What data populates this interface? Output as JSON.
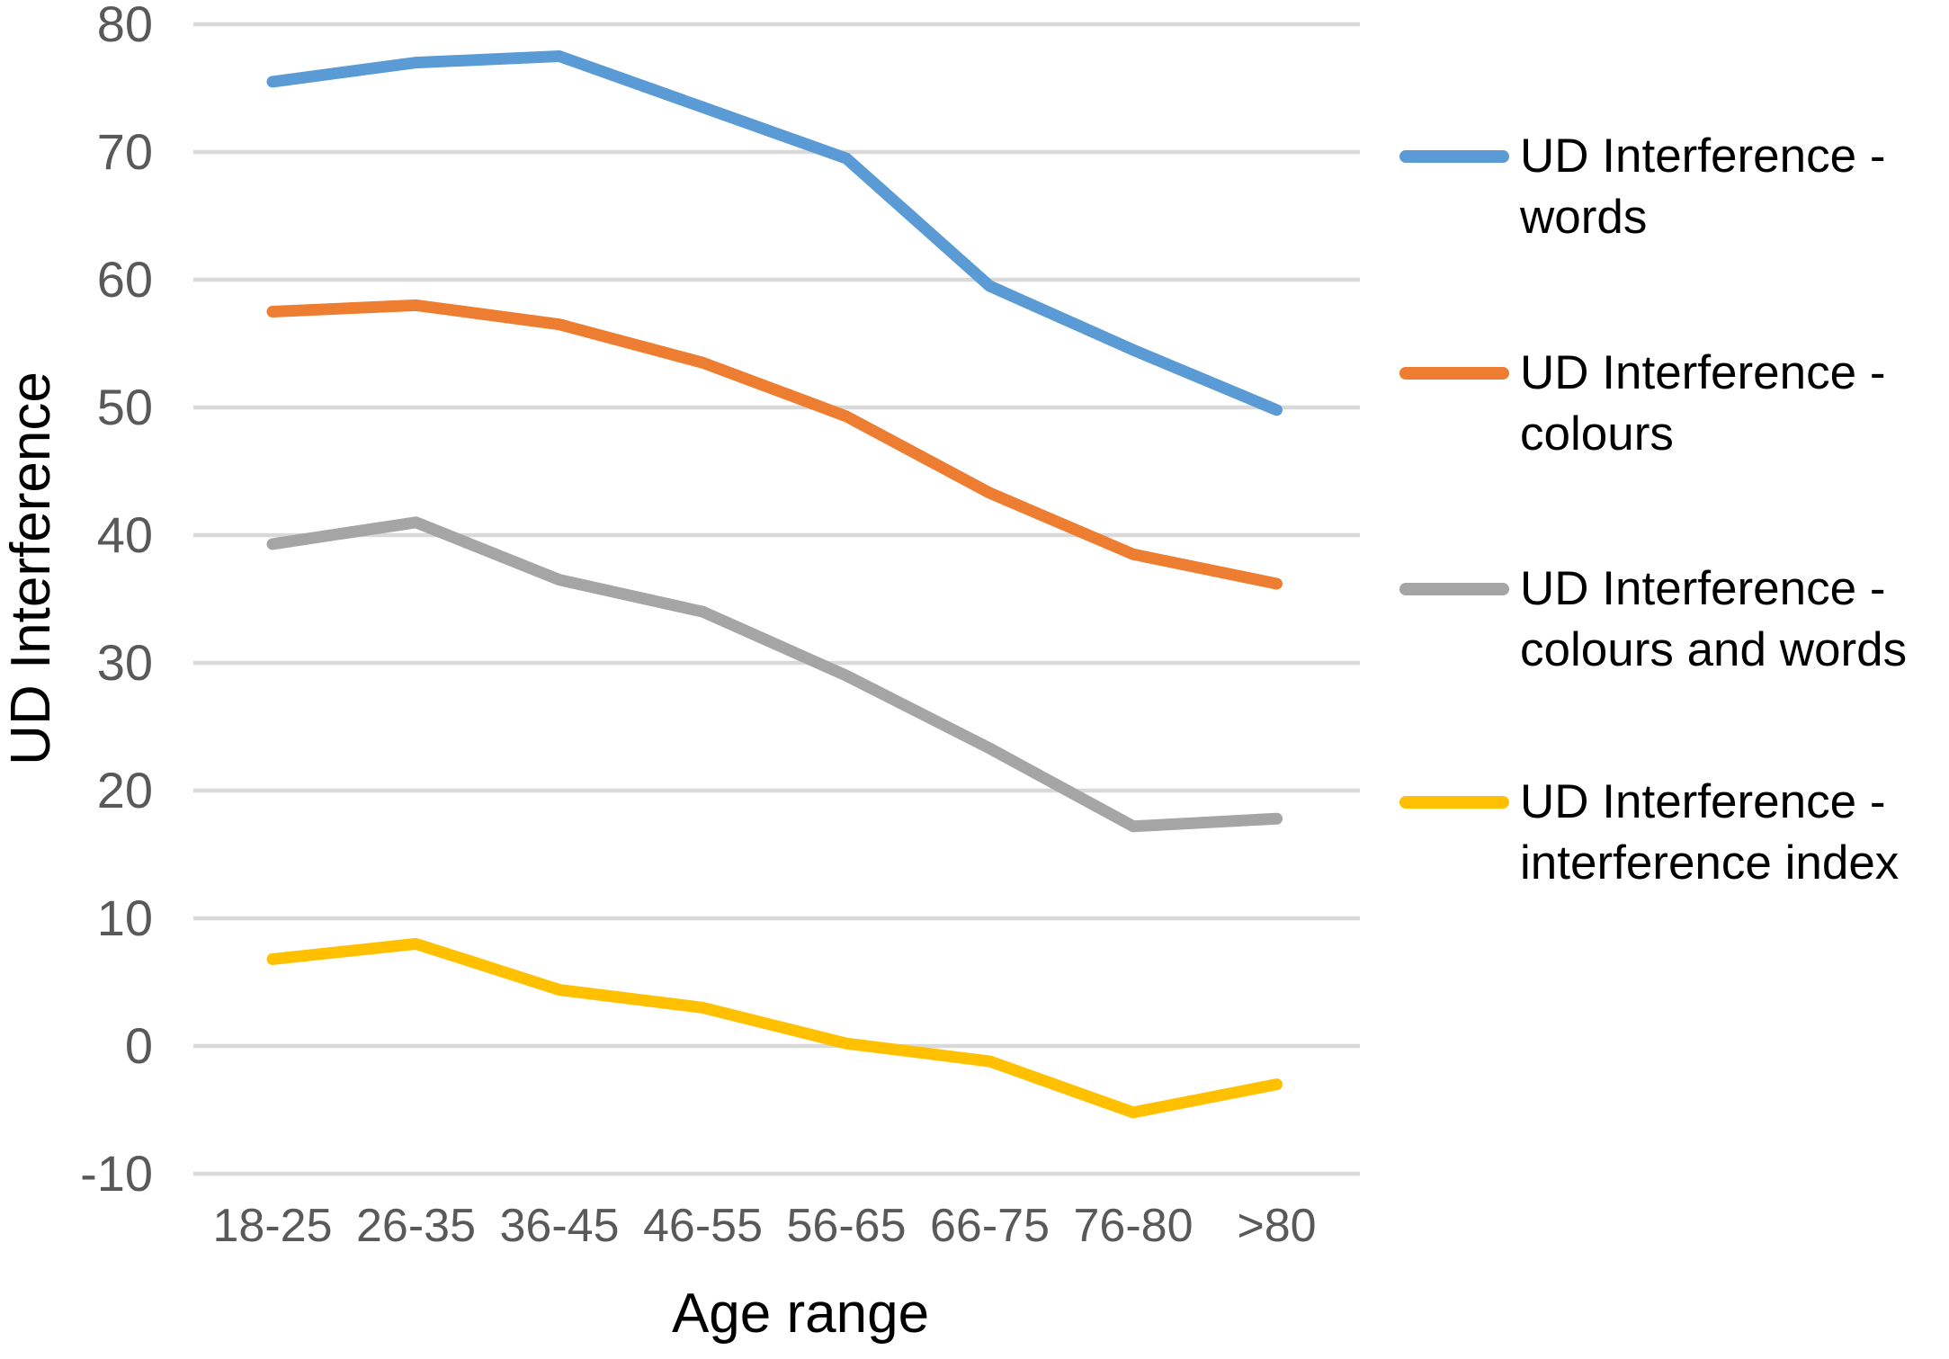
{
  "chart_data": {
    "type": "line",
    "title": "",
    "categories": [
      "18-25",
      "26-35",
      "36-45",
      "46-55",
      "56-65",
      "66-75",
      "76-80",
      ">80"
    ],
    "series": [
      {
        "name": "UD Interference - words",
        "color": "#5B9BD5",
        "values": [
          75.5,
          77,
          77.5,
          73.5,
          69.5,
          59.5,
          54.5,
          49.8
        ]
      },
      {
        "name": "UD Interference - colours",
        "color": "#ED7D31",
        "values": [
          57.5,
          58,
          56.5,
          53.5,
          49.3,
          43.3,
          38.5,
          36.2
        ]
      },
      {
        "name": "UD Interference - colours and words",
        "color": "#A5A5A5",
        "values": [
          39.3,
          41,
          36.5,
          34,
          29,
          23.3,
          17.2,
          17.8
        ]
      },
      {
        "name": "UD Interference - interference index",
        "color": "#FFC000",
        "values": [
          6.8,
          8,
          4.4,
          3,
          0.2,
          -1.2,
          -5.2,
          -3
        ]
      }
    ],
    "xlabel": "Age range",
    "ylabel": "UD Interference",
    "ylim": [
      -10,
      80
    ],
    "ytick_interval": 10,
    "ytick_labels": [
      "80",
      "70",
      "60",
      "50",
      "40",
      "30",
      "20",
      "10",
      "0",
      "-10"
    ],
    "grid": "horizontal",
    "legend_position": "right"
  },
  "style": {
    "background": "#FFFFFF",
    "gridline_color": "#D9D9D9",
    "tick_label_color": "#595959",
    "axis_title_color": "#000000"
  }
}
